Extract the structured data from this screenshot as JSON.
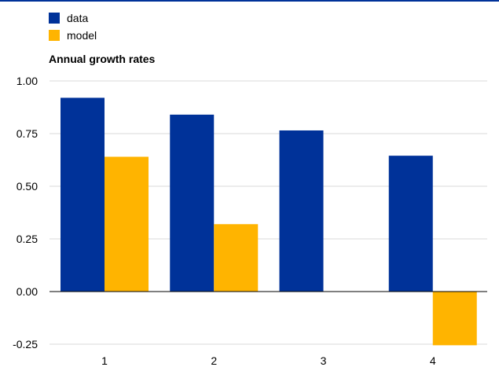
{
  "chart_data": {
    "type": "bar",
    "title": "Annual growth rates",
    "categories": [
      "1",
      "2",
      "3",
      "4"
    ],
    "series": [
      {
        "name": "data",
        "color": "#003299",
        "values": [
          0.92,
          0.84,
          0.765,
          0.645
        ]
      },
      {
        "name": "model",
        "color": "#FFB400",
        "values": [
          0.64,
          0.32,
          0.0,
          -0.255
        ]
      }
    ],
    "ylim": [
      -0.25,
      1.0
    ],
    "yticks": [
      1.0,
      0.75,
      0.5,
      0.25,
      0.0,
      -0.25
    ],
    "ytick_labels": [
      "1.00",
      "0.75",
      "0.50",
      "0.25",
      "0.00",
      "-0.25"
    ],
    "grid": true,
    "legend_position": "top-left"
  },
  "colors": {
    "top_rule": "#003299",
    "grid": "#d9d9d9",
    "zero_line": "#000000"
  }
}
